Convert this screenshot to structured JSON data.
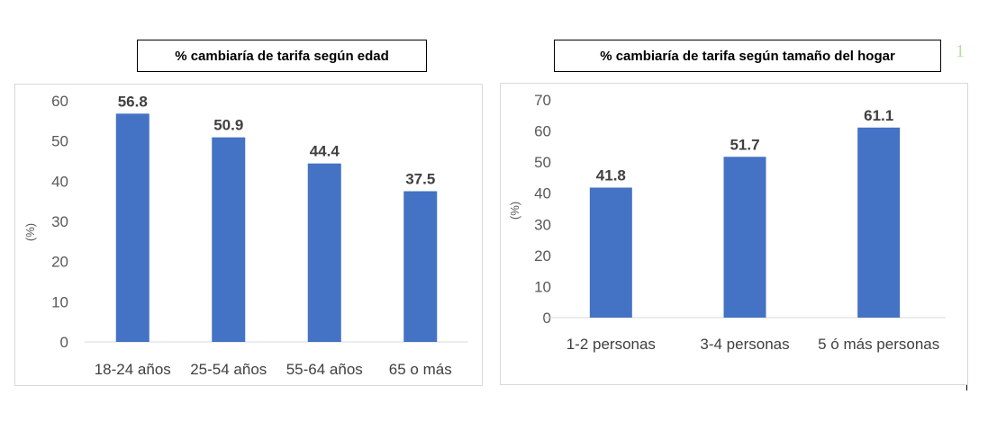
{
  "page_number": "1",
  "chart_data": [
    {
      "type": "bar",
      "title": "% cambiaría de tarifa según edad",
      "ylabel": "(%)",
      "categories": [
        "18-24 años",
        "25-54 años",
        "55-64 años",
        "65 o más"
      ],
      "values": [
        56.8,
        50.9,
        44.4,
        37.5
      ],
      "data_labels": [
        "56.8",
        "50.9",
        "44.4",
        "37.5"
      ],
      "ylim": [
        0,
        60
      ],
      "yticks": [
        "0",
        "10",
        "20",
        "30",
        "40",
        "50",
        "60"
      ],
      "grid": false,
      "bar_color": "#4472c4"
    },
    {
      "type": "bar",
      "title": "% cambiaría de tarifa según tamaño del hogar",
      "ylabel": "(%)",
      "categories": [
        "1-2 personas",
        "3-4 personas",
        "5 ó más personas"
      ],
      "values": [
        41.8,
        51.7,
        61.1
      ],
      "data_labels": [
        "41.8",
        "51.7",
        "61.1"
      ],
      "ylim": [
        0,
        70
      ],
      "yticks": [
        "0",
        "10",
        "20",
        "30",
        "40",
        "50",
        "60",
        "70"
      ],
      "grid": false,
      "bar_color": "#4472c4"
    }
  ]
}
